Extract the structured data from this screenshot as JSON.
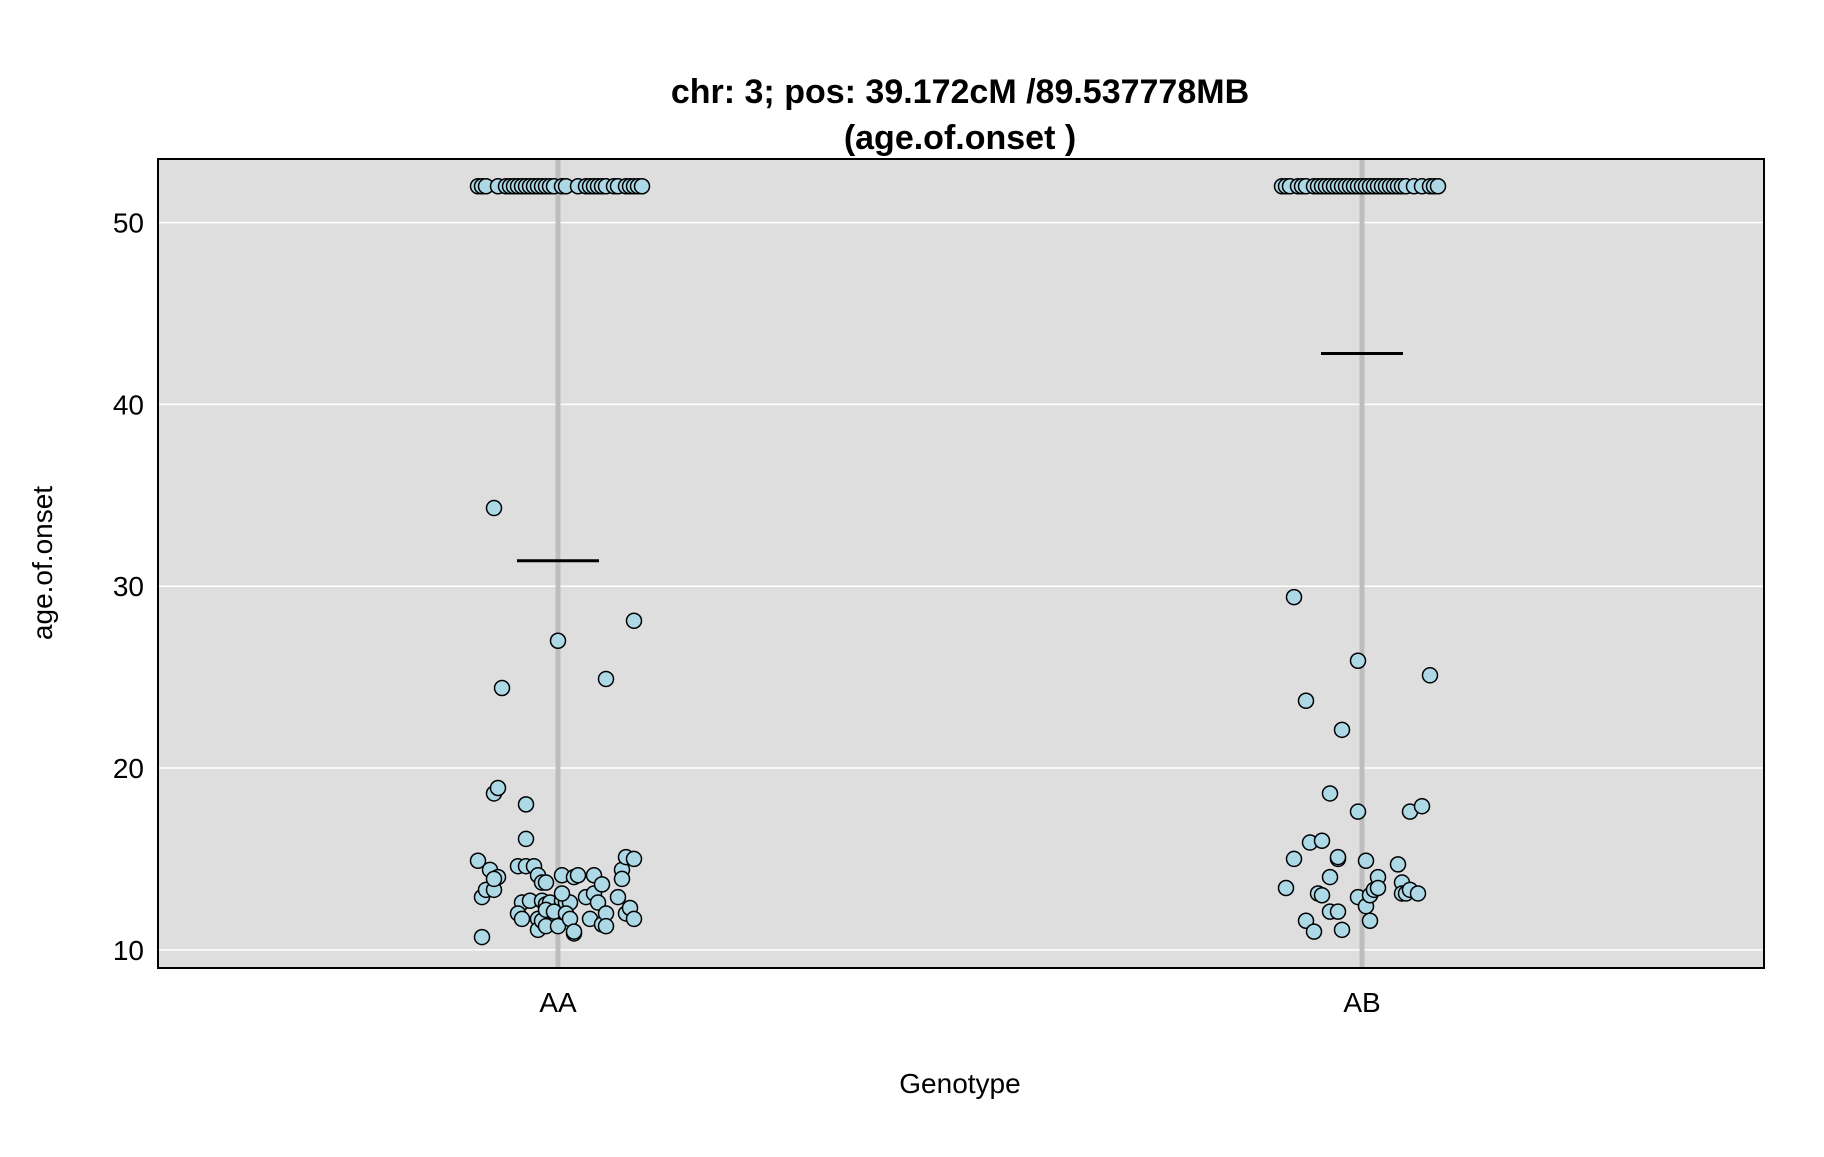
{
  "colors": {
    "panel_bg": "#dedede",
    "grid": "#ffffff",
    "point_fill": "#add8e6",
    "point_stroke": "#000000",
    "center_line": "#bdbdbd",
    "mean_line": "#000000"
  },
  "chart_data": {
    "type": "scatter",
    "title": "chr: 3; pos: 39.172cM /89.537778MB",
    "subtitle": "(age.of.onset )",
    "xlabel": "Genotype",
    "ylabel": "age.of.onset",
    "categories": [
      "AA",
      "AB"
    ],
    "ylim": [
      9.0,
      53.5
    ],
    "yticks": [
      10,
      20,
      30,
      40,
      50
    ],
    "grid": true,
    "legend": "none",
    "means": [
      31.4,
      42.8
    ],
    "series": [
      {
        "category": "AA",
        "points": [
          [
            -0.2,
            52
          ],
          [
            -0.19,
            52
          ],
          [
            -0.18,
            52
          ],
          [
            -0.15,
            52
          ],
          [
            -0.13,
            52
          ],
          [
            -0.12,
            52
          ],
          [
            -0.11,
            52
          ],
          [
            -0.1,
            52
          ],
          [
            -0.09,
            52
          ],
          [
            -0.08,
            52
          ],
          [
            -0.07,
            52
          ],
          [
            -0.06,
            52
          ],
          [
            -0.05,
            52
          ],
          [
            -0.04,
            52
          ],
          [
            -0.03,
            52
          ],
          [
            -0.02,
            52
          ],
          [
            -0.01,
            52
          ],
          [
            0.01,
            52
          ],
          [
            0.02,
            52
          ],
          [
            0.05,
            52
          ],
          [
            0.07,
            52
          ],
          [
            0.08,
            52
          ],
          [
            0.09,
            52
          ],
          [
            0.1,
            52
          ],
          [
            0.11,
            52
          ],
          [
            0.12,
            52
          ],
          [
            0.14,
            52
          ],
          [
            0.15,
            52
          ],
          [
            0.17,
            52
          ],
          [
            0.18,
            52
          ],
          [
            0.19,
            52
          ],
          [
            0.2,
            52
          ],
          [
            0.21,
            52
          ],
          [
            -0.16,
            34.3
          ],
          [
            -0.14,
            24.4
          ],
          [
            0.0,
            27.0
          ],
          [
            0.12,
            24.9
          ],
          [
            0.19,
            28.1
          ],
          [
            -0.16,
            18.6
          ],
          [
            -0.15,
            18.9
          ],
          [
            -0.08,
            18.0
          ],
          [
            -0.08,
            16.1
          ],
          [
            -0.2,
            14.9
          ],
          [
            -0.17,
            14.4
          ],
          [
            -0.15,
            14.0
          ],
          [
            -0.1,
            14.6
          ],
          [
            -0.08,
            14.6
          ],
          [
            -0.06,
            14.6
          ],
          [
            -0.05,
            14.1
          ],
          [
            0.01,
            14.1
          ],
          [
            0.04,
            14.0
          ],
          [
            0.05,
            14.1
          ],
          [
            0.09,
            14.1
          ],
          [
            0.16,
            14.4
          ],
          [
            0.16,
            13.9
          ],
          [
            0.17,
            15.1
          ],
          [
            0.19,
            15.0
          ],
          [
            -0.19,
            12.9
          ],
          [
            -0.18,
            13.3
          ],
          [
            -0.16,
            13.3
          ],
          [
            -0.16,
            13.9
          ],
          [
            -0.09,
            12.6
          ],
          [
            -0.07,
            12.7
          ],
          [
            -0.04,
            13.7
          ],
          [
            -0.04,
            12.7
          ],
          [
            -0.03,
            12.5
          ],
          [
            -0.03,
            13.7
          ],
          [
            -0.02,
            12.6
          ],
          [
            0.01,
            12.7
          ],
          [
            0.02,
            12.6
          ],
          [
            0.03,
            12.6
          ],
          [
            0.01,
            13.1
          ],
          [
            0.07,
            12.9
          ],
          [
            0.09,
            13.1
          ],
          [
            0.1,
            12.6
          ],
          [
            0.11,
            13.6
          ],
          [
            0.15,
            12.9
          ],
          [
            -0.1,
            12.0
          ],
          [
            -0.09,
            11.7
          ],
          [
            -0.05,
            11.7
          ],
          [
            -0.05,
            11.1
          ],
          [
            -0.04,
            11.6
          ],
          [
            -0.03,
            11.3
          ],
          [
            -0.03,
            12.2
          ],
          [
            -0.01,
            12.1
          ],
          [
            0.0,
            11.3
          ],
          [
            0.02,
            12.0
          ],
          [
            0.03,
            11.7
          ],
          [
            0.04,
            10.9
          ],
          [
            0.04,
            11.0
          ],
          [
            0.08,
            11.7
          ],
          [
            0.11,
            11.4
          ],
          [
            0.12,
            12.0
          ],
          [
            0.12,
            11.3
          ],
          [
            0.17,
            12.0
          ],
          [
            0.18,
            12.3
          ],
          [
            0.19,
            11.7
          ],
          [
            -0.19,
            10.7
          ]
        ]
      },
      {
        "category": "AB",
        "points": [
          [
            -0.2,
            52
          ],
          [
            -0.19,
            52
          ],
          [
            -0.18,
            52
          ],
          [
            -0.16,
            52
          ],
          [
            -0.15,
            52
          ],
          [
            -0.14,
            52
          ],
          [
            -0.12,
            52
          ],
          [
            -0.11,
            52
          ],
          [
            -0.1,
            52
          ],
          [
            -0.09,
            52
          ],
          [
            -0.08,
            52
          ],
          [
            -0.07,
            52
          ],
          [
            -0.06,
            52
          ],
          [
            -0.05,
            52
          ],
          [
            -0.04,
            52
          ],
          [
            -0.03,
            52
          ],
          [
            -0.02,
            52
          ],
          [
            -0.01,
            52
          ],
          [
            0.0,
            52
          ],
          [
            0.01,
            52
          ],
          [
            0.02,
            52
          ],
          [
            0.03,
            52
          ],
          [
            0.04,
            52
          ],
          [
            0.05,
            52
          ],
          [
            0.06,
            52
          ],
          [
            0.07,
            52
          ],
          [
            0.08,
            52
          ],
          [
            0.09,
            52
          ],
          [
            0.1,
            52
          ],
          [
            0.11,
            52
          ],
          [
            0.13,
            52
          ],
          [
            0.15,
            52
          ],
          [
            0.17,
            52
          ],
          [
            0.18,
            52
          ],
          [
            0.19,
            52
          ],
          [
            -0.17,
            29.4
          ],
          [
            -0.14,
            23.7
          ],
          [
            -0.05,
            22.1
          ],
          [
            -0.01,
            25.9
          ],
          [
            0.17,
            25.1
          ],
          [
            -0.08,
            18.6
          ],
          [
            -0.01,
            17.6
          ],
          [
            0.12,
            17.6
          ],
          [
            0.15,
            17.9
          ],
          [
            -0.19,
            13.4
          ],
          [
            -0.17,
            15.0
          ],
          [
            -0.13,
            15.9
          ],
          [
            -0.1,
            16.0
          ],
          [
            -0.08,
            14.0
          ],
          [
            -0.06,
            15.0
          ],
          [
            -0.06,
            15.1
          ],
          [
            0.01,
            14.9
          ],
          [
            0.04,
            14.0
          ],
          [
            0.09,
            14.7
          ],
          [
            0.1,
            13.7
          ],
          [
            -0.11,
            13.1
          ],
          [
            -0.1,
            13.0
          ],
          [
            -0.01,
            12.9
          ],
          [
            0.01,
            12.4
          ],
          [
            0.02,
            13.0
          ],
          [
            0.03,
            13.3
          ],
          [
            0.04,
            13.4
          ],
          [
            0.1,
            13.1
          ],
          [
            0.11,
            13.1
          ],
          [
            0.12,
            13.3
          ],
          [
            0.14,
            13.1
          ],
          [
            -0.14,
            11.6
          ],
          [
            -0.12,
            11.0
          ],
          [
            -0.08,
            12.1
          ],
          [
            -0.06,
            12.1
          ],
          [
            -0.05,
            11.1
          ],
          [
            0.02,
            11.6
          ]
        ]
      }
    ]
  }
}
